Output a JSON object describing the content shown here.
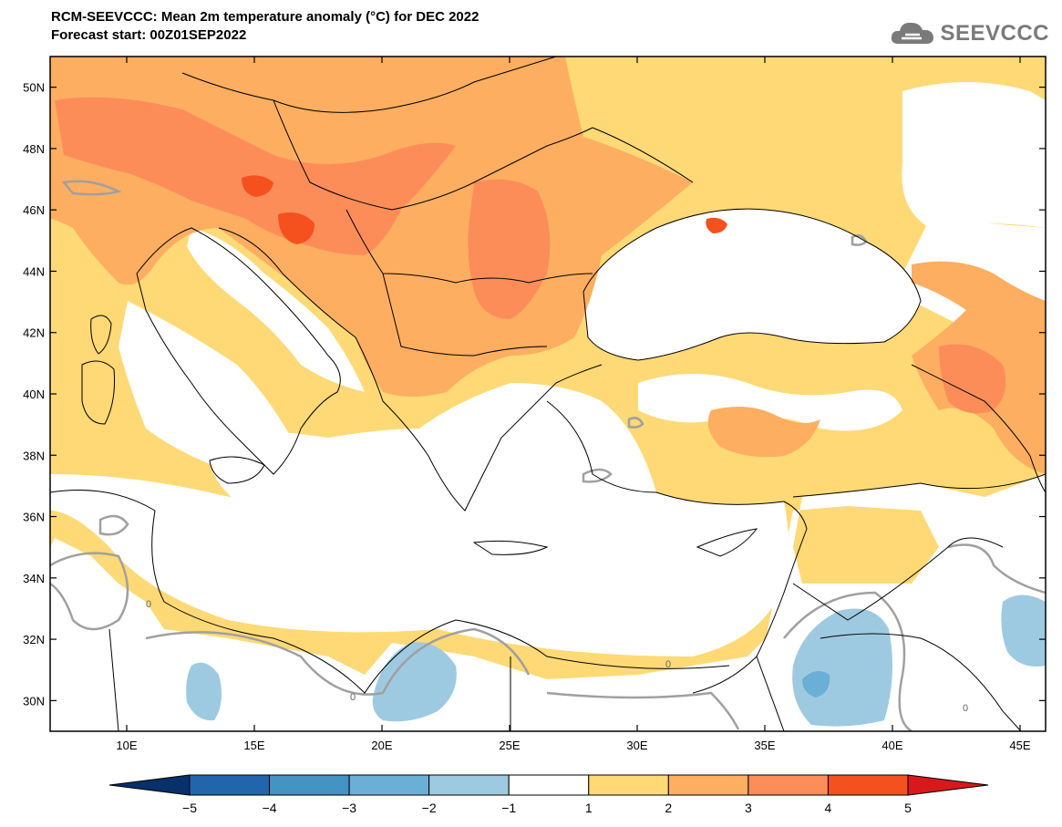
{
  "header": {
    "title": "RCM-SEEVCCC: Mean 2m temperature anomaly (°C) for DEC 2022",
    "subtitle": "Forecast start: 00Z01SEP2022"
  },
  "logo": {
    "text": "SEEVCCC",
    "icon": "cloud-icon"
  },
  "map": {
    "lat_labels": [
      "50N",
      "48N",
      "46N",
      "44N",
      "42N",
      "40N",
      "38N",
      "36N",
      "34N",
      "32N",
      "30N"
    ],
    "lat_values": [
      50,
      48,
      46,
      44,
      42,
      40,
      38,
      36,
      34,
      32,
      30
    ],
    "lon_labels": [
      "10E",
      "15E",
      "20E",
      "25E",
      "30E",
      "35E",
      "40E",
      "45E"
    ],
    "lon_values": [
      10,
      15,
      20,
      25,
      30,
      35,
      40,
      45
    ],
    "lon_range": [
      7,
      46
    ],
    "lat_range": [
      29,
      51
    ],
    "contour_labels": [
      "0",
      "0",
      "0",
      "0"
    ]
  },
  "colorbar": {
    "labels": [
      "−5",
      "−4",
      "−3",
      "−2",
      "−1",
      "1",
      "2",
      "3",
      "4",
      "5"
    ],
    "colors": [
      "#08306b",
      "#2166ac",
      "#4393c3",
      "#6baed6",
      "#9ecae1",
      "#ffffff",
      "#fed976",
      "#fdae61",
      "#fc8d59",
      "#f4511e",
      "#d7191c"
    ]
  },
  "palette": {
    "ocean": "#ffffff",
    "anom_1_2": "#fed976",
    "anom_2_3": "#fdae61",
    "anom_3_4": "#fc8d59",
    "anom_4_5": "#f4511e",
    "anom_neg": "#9ecae1",
    "anom_neg2": "#6baed6"
  }
}
